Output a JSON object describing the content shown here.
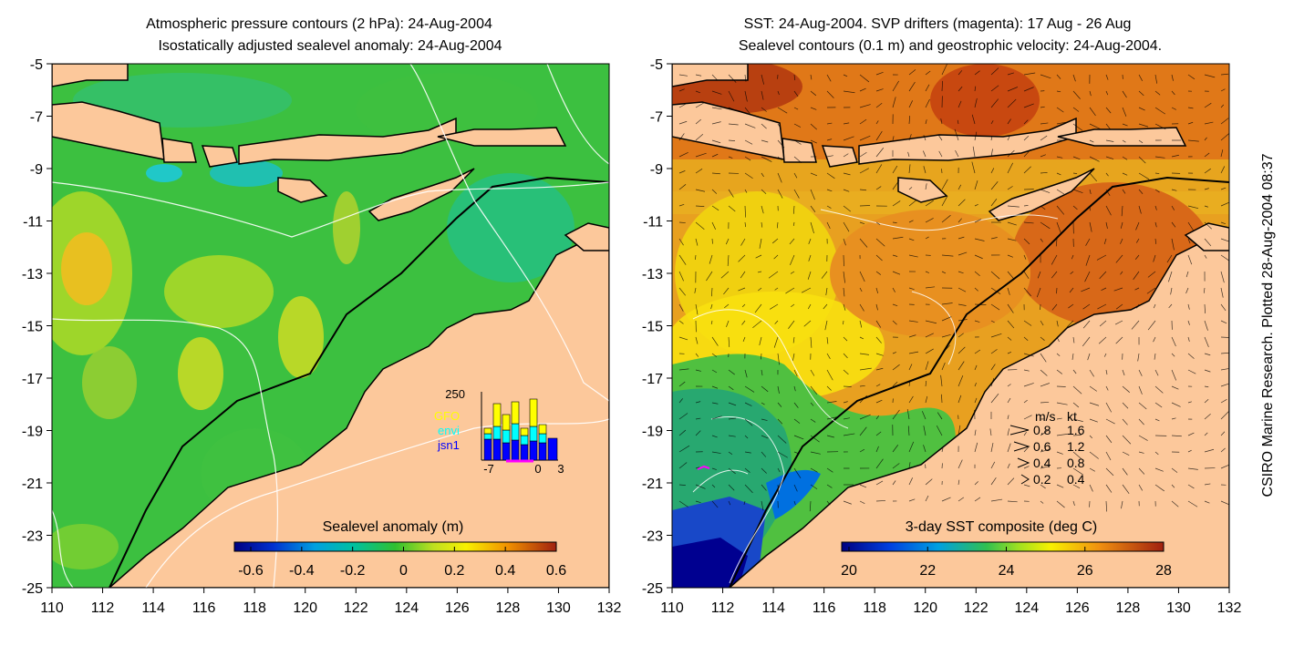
{
  "left_panel": {
    "title_line1": "Atmospheric pressure contours (2 hPa): 24-Aug-2004",
    "title_line2": "Isostatically adjusted sealevel anomaly: 24-Aug-2004",
    "colorbar": {
      "label": "Sealevel anomaly (m)",
      "ticks": [
        "-0.6",
        "-0.4",
        "-0.2",
        "0",
        "0.2",
        "0.4",
        "0.6"
      ]
    },
    "inset": {
      "ymax_label": "250",
      "x_ticks": [
        "-7",
        "0",
        "3"
      ],
      "legend": [
        {
          "name": "GFO",
          "color": "#ffff00"
        },
        {
          "name": "envi",
          "color": "#00ffff"
        },
        {
          "name": "jsn1",
          "color": "#0000ff"
        }
      ]
    }
  },
  "right_panel": {
    "title_line1": "SST: 24-Aug-2004. SVP drifters (magenta): 17 Aug - 26 Aug",
    "title_line2": "Sealevel contours (0.1 m) and geostrophic velocity: 24-Aug-2004.",
    "colorbar": {
      "label": "3-day SST composite (deg C)",
      "ticks": [
        "20",
        "22",
        "24",
        "26",
        "28"
      ]
    },
    "vector_legend": {
      "header_ms": "m/s",
      "header_kt": "kt",
      "rows": [
        {
          "ms": "0.8",
          "kt": "1.6"
        },
        {
          "ms": "0.6",
          "kt": "1.2"
        },
        {
          "ms": "0.4",
          "kt": "0.8"
        },
        {
          "ms": "0.2",
          "kt": "0.4"
        }
      ]
    }
  },
  "axes": {
    "x_ticks": [
      "110",
      "112",
      "114",
      "116",
      "118",
      "120",
      "122",
      "124",
      "126",
      "128",
      "130",
      "132"
    ],
    "y_ticks": [
      "-5",
      "-7",
      "-9",
      "-11",
      "-13",
      "-15",
      "-17",
      "-19",
      "-21",
      "-23",
      "-25"
    ]
  },
  "credit": "CSIRO Marine Research. Plotted 28-Aug-2004 08:37",
  "colors": {
    "land": "#fcc89b",
    "ssh_ocean": "#3cc040",
    "sst_warm": "#e8a020"
  },
  "chart_data": [
    {
      "type": "heatmap",
      "title": "Atmospheric pressure contours (2 hPa): 24-Aug-2004 / Isostatically adjusted sealevel anomaly: 24-Aug-2004",
      "xlim": [
        110,
        132
      ],
      "ylim": [
        -25,
        -5
      ],
      "colorbar_range": [
        -0.6,
        0.6
      ],
      "colorbar_label": "Sealevel anomaly (m)"
    },
    {
      "type": "heatmap",
      "title": "SST: 24-Aug-2004. SVP drifters (magenta): 17 Aug - 26 Aug / Sealevel contours (0.1 m) and geostrophic velocity: 24-Aug-2004.",
      "xlim": [
        110,
        132
      ],
      "ylim": [
        -25,
        -5
      ],
      "colorbar_range": [
        20,
        28
      ],
      "colorbar_label": "3-day SST composite (deg C)"
    }
  ]
}
